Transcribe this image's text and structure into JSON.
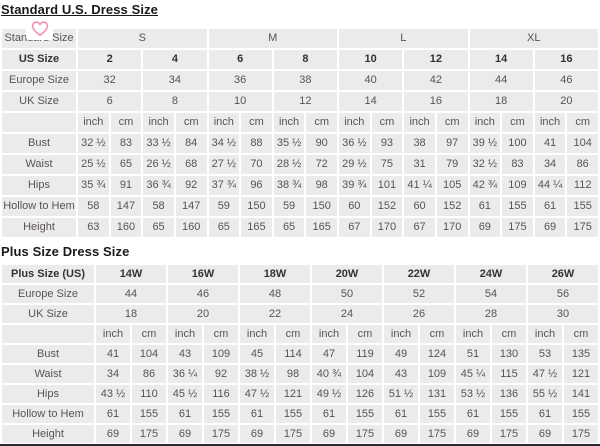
{
  "page": {
    "standard_title": "Standard U.S. Dress Size",
    "plus_title": "Plus Size Dress Size"
  },
  "colors": {
    "cell_background": "#ebebeb",
    "gridline": "#ffffff",
    "text": "#585257",
    "bold_text": "#333333",
    "heart_pink": "#f294ae",
    "bottom_edge": "#2a2a2e"
  },
  "icons": {
    "heart": "heart-icon"
  },
  "standard_table": {
    "rows": {
      "standard_size": {
        "label": "Standard Size",
        "values": [
          "S",
          "M",
          "L",
          "XL"
        ]
      },
      "us_size": {
        "label": "US Size",
        "values": [
          "2",
          "4",
          "6",
          "8",
          "10",
          "12",
          "14",
          "16"
        ]
      },
      "europe_size": {
        "label": "Europe Size",
        "values": [
          "32",
          "34",
          "36",
          "38",
          "40",
          "42",
          "44",
          "46"
        ]
      },
      "uk_size": {
        "label": "UK Size",
        "values": [
          "6",
          "8",
          "10",
          "12",
          "14",
          "16",
          "18",
          "20"
        ]
      }
    },
    "unit_headers": [
      "inch",
      "cm"
    ],
    "unit_pairs": 8,
    "measurements": [
      {
        "label": "Bust",
        "values": [
          "32 ½",
          "83",
          "33 ½",
          "84",
          "34 ½",
          "88",
          "35 ½",
          "90",
          "36 ½",
          "93",
          "38",
          "97",
          "39 ½",
          "100",
          "41",
          "104"
        ]
      },
      {
        "label": "Waist",
        "values": [
          "25 ½",
          "65",
          "26 ½",
          "68",
          "27 ½",
          "70",
          "28 ½",
          "72",
          "29 ½",
          "75",
          "31",
          "79",
          "32 ½",
          "83",
          "34",
          "86"
        ]
      },
      {
        "label": "Hips",
        "values": [
          "35 ¾",
          "91",
          "36 ¾",
          "92",
          "37 ¾",
          "96",
          "38 ¾",
          "98",
          "39 ¾",
          "101",
          "41 ¼",
          "105",
          "42 ¾",
          "109",
          "44 ¼",
          "112"
        ]
      },
      {
        "label": "Hollow to Hem",
        "values": [
          "58",
          "147",
          "58",
          "147",
          "59",
          "150",
          "59",
          "150",
          "60",
          "152",
          "60",
          "152",
          "61",
          "155",
          "61",
          "155"
        ]
      },
      {
        "label": "Height",
        "values": [
          "63",
          "160",
          "65",
          "160",
          "65",
          "165",
          "65",
          "165",
          "67",
          "170",
          "67",
          "170",
          "69",
          "175",
          "69",
          "175"
        ]
      }
    ]
  },
  "plus_table": {
    "rows": {
      "plus_size": {
        "label": "Plus Size (US)",
        "values": [
          "14W",
          "16W",
          "18W",
          "20W",
          "22W",
          "24W",
          "26W"
        ]
      },
      "europe_size": {
        "label": "Europe Size",
        "values": [
          "44",
          "46",
          "48",
          "50",
          "52",
          "54",
          "56"
        ]
      },
      "uk_size": {
        "label": "UK Size",
        "values": [
          "18",
          "20",
          "22",
          "24",
          "26",
          "28",
          "30"
        ]
      }
    },
    "unit_headers": [
      "inch",
      "cm"
    ],
    "unit_pairs": 7,
    "measurements": [
      {
        "label": "Bust",
        "values": [
          "41",
          "104",
          "43",
          "109",
          "45",
          "114",
          "47",
          "119",
          "49",
          "124",
          "51",
          "130",
          "53",
          "135"
        ]
      },
      {
        "label": "Waist",
        "values": [
          "34",
          "86",
          "36 ¼",
          "92",
          "38 ½",
          "98",
          "40 ¾",
          "104",
          "43",
          "109",
          "45 ¼",
          "115",
          "47 ½",
          "121"
        ]
      },
      {
        "label": "Hips",
        "values": [
          "43 ½",
          "110",
          "45 ½",
          "116",
          "47 ½",
          "121",
          "49 ½",
          "126",
          "51 ½",
          "131",
          "53 ½",
          "136",
          "55 ½",
          "141"
        ]
      },
      {
        "label": "Hollow to Hem",
        "values": [
          "61",
          "155",
          "61",
          "155",
          "61",
          "155",
          "61",
          "155",
          "61",
          "155",
          "61",
          "155",
          "61",
          "155"
        ]
      },
      {
        "label": "Height",
        "values": [
          "69",
          "175",
          "69",
          "175",
          "69",
          "175",
          "69",
          "175",
          "69",
          "175",
          "69",
          "175",
          "69",
          "175"
        ]
      }
    ]
  }
}
